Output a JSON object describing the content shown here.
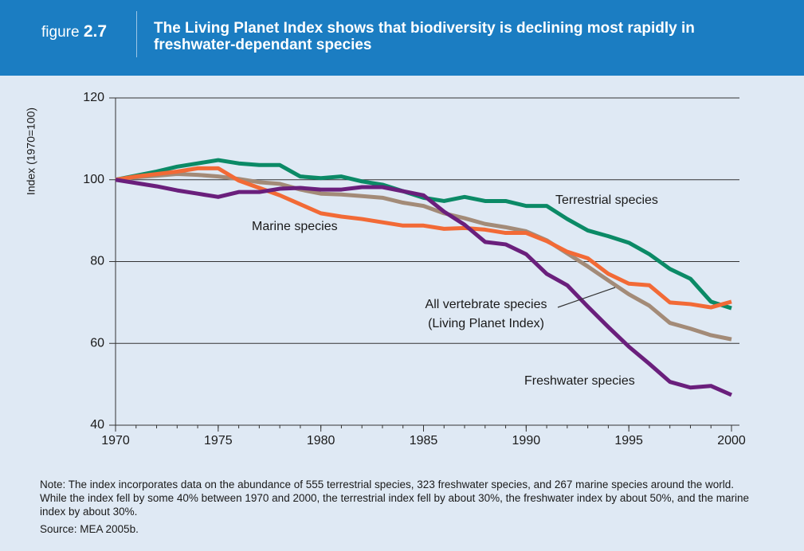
{
  "header": {
    "figure_label": "figure",
    "figure_number": "2.7"
  },
  "chart_data": {
    "type": "line",
    "title": "The Living Planet Index shows that biodiversity is declining most rapidly in freshwater-dependant species",
    "y_label": "Index (1970=100)",
    "x": [
      1970,
      1971,
      1972,
      1973,
      1974,
      1975,
      1976,
      1977,
      1978,
      1979,
      1980,
      1981,
      1982,
      1983,
      1984,
      1985,
      1986,
      1987,
      1988,
      1989,
      1990,
      1991,
      1992,
      1993,
      1994,
      1995,
      1996,
      1997,
      1998,
      1999,
      2000
    ],
    "xlim": [
      1970,
      2000
    ],
    "xticks": [
      1970,
      1975,
      1980,
      1985,
      1990,
      1995,
      2000
    ],
    "ylim": [
      40,
      120
    ],
    "yticks": [
      40,
      60,
      80,
      100,
      120
    ],
    "grid": true,
    "series": [
      {
        "name": "Terrestrial species",
        "color": "#0b8a66",
        "values": [
          100,
          101,
          102,
          103.2,
          104,
          104.8,
          104,
          103.6,
          103.6,
          100.8,
          100.4,
          100.8,
          99.6,
          98.8,
          97.2,
          95.6,
          94.8,
          95.8,
          94.8,
          94.8,
          93.6,
          93.6,
          90.4,
          87.6,
          86.2,
          84.6,
          81.8,
          78.2,
          75.8,
          70.2,
          68.6
        ]
      },
      {
        "name": "Marine species",
        "color": "#f26a36",
        "values": [
          100,
          100.8,
          101.4,
          102,
          102.8,
          102.8,
          99.8,
          98,
          96.2,
          94,
          91.8,
          91,
          90.4,
          89.6,
          88.8,
          88.8,
          88,
          88.2,
          87.8,
          87,
          87,
          85,
          82.4,
          80.8,
          77,
          74.6,
          74.2,
          70,
          69.6,
          68.8,
          70.2
        ]
      },
      {
        "name": "All vertebrate species (Living Planet Index)",
        "color": "#a38b78",
        "values": [
          100,
          100.6,
          101,
          101.4,
          101.2,
          100.8,
          100.2,
          99.4,
          99,
          97.6,
          96.6,
          96.4,
          96,
          95.6,
          94.4,
          93.6,
          91.8,
          90.6,
          89.2,
          88.4,
          87.4,
          85.2,
          82,
          78.8,
          75.4,
          72,
          69.2,
          65,
          63.6,
          62,
          61
        ]
      },
      {
        "name": "Freshwater species",
        "color": "#6a1f7c",
        "values": [
          100,
          99.2,
          98.4,
          97.4,
          96.6,
          95.8,
          97,
          97,
          97.8,
          98,
          97.6,
          97.6,
          98.2,
          98.2,
          97.2,
          96.2,
          92.2,
          89,
          84.8,
          84.2,
          81.8,
          77,
          74.2,
          69,
          64,
          59.2,
          55,
          50.6,
          49.2,
          49.6,
          47.4
        ]
      }
    ]
  },
  "notes": "Note: The index incorporates data on the abundance of 555 terrestrial species, 323 freshwater species, and 267 marine species around the world. While the index fell by some 40% between 1970 and 2000, the terrestrial index fell by about 30%, the freshwater index by about 50%, and the marine index by about 30%.",
  "source": "Source: MEA 2005b."
}
